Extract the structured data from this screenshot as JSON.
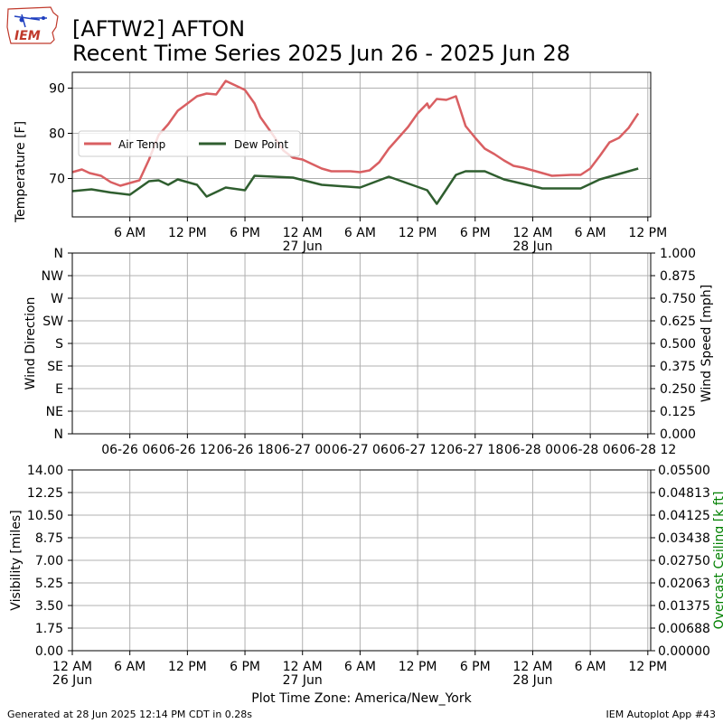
{
  "header": {
    "logo_text": "IEM",
    "title_line1": "[AFTW2] AFTON",
    "title_line2": "Recent Time Series 2025 Jun 26 - 2025 Jun 28"
  },
  "footer": {
    "generated": "Generated at 28 Jun 2025 12:14 PM CDT in 0.28s",
    "app": "IEM Autoplot App #43"
  },
  "colors": {
    "air_temp": "#d95f62",
    "dew_point": "#2f5e2f",
    "grid": "#b0b0b0",
    "ceiling_axis": "#008000"
  },
  "chart_data": [
    {
      "type": "line",
      "ylabel": "Temperature [F]",
      "ylim": [
        61.5,
        93.5
      ],
      "yticks": [
        70,
        80,
        90
      ],
      "xlim_hours": [
        0,
        60.3
      ],
      "xtick_labels": [
        {
          "h": 6,
          "label": "6 AM",
          "sub": ""
        },
        {
          "h": 12,
          "label": "12 PM",
          "sub": ""
        },
        {
          "h": 18,
          "label": "6 PM",
          "sub": ""
        },
        {
          "h": 24,
          "label": "12 AM",
          "sub": "27 Jun"
        },
        {
          "h": 30,
          "label": "6 AM",
          "sub": ""
        },
        {
          "h": 36,
          "label": "12 PM",
          "sub": ""
        },
        {
          "h": 42,
          "label": "6 PM",
          "sub": ""
        },
        {
          "h": 48,
          "label": "12 AM",
          "sub": "28 Jun"
        },
        {
          "h": 54,
          "label": "6 AM",
          "sub": ""
        },
        {
          "h": 60,
          "label": "12 PM",
          "sub": ""
        }
      ],
      "legend": "upper-left",
      "series": [
        {
          "name": "Air Temp",
          "points": [
            [
              0,
              71.4
            ],
            [
              1,
              72.0
            ],
            [
              1.8,
              71.2
            ],
            [
              3,
              70.6
            ],
            [
              4,
              69.2
            ],
            [
              5,
              68.4
            ],
            [
              6,
              69.0
            ],
            [
              7,
              69.6
            ],
            [
              8,
              74.2
            ],
            [
              9,
              79.6
            ],
            [
              10,
              82.0
            ],
            [
              11,
              85.0
            ],
            [
              12,
              86.6
            ],
            [
              13,
              88.2
            ],
            [
              14,
              88.8
            ],
            [
              15,
              88.6
            ],
            [
              16,
              91.6
            ],
            [
              17,
              90.6
            ],
            [
              18,
              89.6
            ],
            [
              19,
              86.6
            ],
            [
              19.6,
              83.6
            ],
            [
              21,
              79.4
            ],
            [
              22,
              76.2
            ],
            [
              23,
              74.6
            ],
            [
              24,
              74.2
            ],
            [
              25,
              73.2
            ],
            [
              26,
              72.2
            ],
            [
              27,
              71.6
            ],
            [
              29,
              71.6
            ],
            [
              30,
              71.4
            ],
            [
              31,
              71.8
            ],
            [
              32,
              73.6
            ],
            [
              33,
              76.6
            ],
            [
              34,
              79.0
            ],
            [
              35,
              81.4
            ],
            [
              36,
              84.4
            ],
            [
              37,
              86.6
            ],
            [
              37.2,
              85.6
            ],
            [
              38,
              87.6
            ],
            [
              39,
              87.4
            ],
            [
              40,
              88.2
            ],
            [
              41,
              81.6
            ],
            [
              42,
              79.0
            ],
            [
              43,
              76.6
            ],
            [
              44,
              75.4
            ],
            [
              45,
              74.0
            ],
            [
              46,
              72.8
            ],
            [
              47,
              72.4
            ],
            [
              48,
              71.8
            ],
            [
              49,
              71.2
            ],
            [
              50,
              70.6
            ],
            [
              52,
              70.8
            ],
            [
              53,
              70.8
            ],
            [
              54,
              72.2
            ],
            [
              55,
              75.0
            ],
            [
              56,
              78.0
            ],
            [
              57,
              79.0
            ],
            [
              58,
              81.2
            ],
            [
              59,
              84.4
            ]
          ]
        },
        {
          "name": "Dew Point",
          "points": [
            [
              0,
              67.2
            ],
            [
              2,
              67.6
            ],
            [
              4,
              66.9
            ],
            [
              6,
              66.4
            ],
            [
              8,
              69.4
            ],
            [
              9,
              69.6
            ],
            [
              10,
              68.6
            ],
            [
              11,
              69.8
            ],
            [
              13,
              68.6
            ],
            [
              14,
              66.0
            ],
            [
              16,
              68.0
            ],
            [
              18,
              67.4
            ],
            [
              19,
              70.6
            ],
            [
              23,
              70.2
            ],
            [
              26,
              68.6
            ],
            [
              30,
              68.0
            ],
            [
              33,
              70.4
            ],
            [
              37,
              67.4
            ],
            [
              38,
              64.4
            ],
            [
              40,
              70.8
            ],
            [
              41,
              71.6
            ],
            [
              43,
              71.6
            ],
            [
              45,
              69.8
            ],
            [
              49,
              67.8
            ],
            [
              53,
              67.8
            ],
            [
              55,
              69.8
            ],
            [
              57,
              71.0
            ],
            [
              59,
              72.2
            ]
          ]
        }
      ]
    },
    {
      "type": "line",
      "ylabel": "Wind Direction",
      "y2label": "Wind Speed [mph]",
      "yticks_left": [
        "N",
        "NE",
        "E",
        "SE",
        "S",
        "SW",
        "W",
        "NW",
        "N"
      ],
      "yticks_right": [
        "0.000",
        "0.125",
        "0.250",
        "0.375",
        "0.500",
        "0.625",
        "0.750",
        "0.875",
        "1.000"
      ],
      "y2lim": [
        0,
        1
      ],
      "xtick_labels": [
        "06-26 06",
        "06-26 12",
        "06-26 18",
        "06-27 00",
        "06-27 06",
        "06-27 12",
        "06-27 18",
        "06-28 00",
        "06-28 06",
        "06-28 12"
      ],
      "series": []
    },
    {
      "type": "line",
      "ylabel": "Visibility [miles]",
      "y2label": "Overcast Ceiling [k ft]",
      "ylim": [
        0,
        14
      ],
      "y2lim": [
        0,
        0.055
      ],
      "yticks_left": [
        "0.00",
        "1.75",
        "3.50",
        "5.25",
        "7.00",
        "8.75",
        "10.50",
        "12.25",
        "14.00"
      ],
      "yticks_right": [
        "0.00000",
        "0.00688",
        "0.01375",
        "0.02063",
        "0.02750",
        "0.03438",
        "0.04125",
        "0.04813",
        "0.05500"
      ],
      "xtick_labels": [
        {
          "h": 0,
          "label": "12 AM",
          "sub": "26 Jun"
        },
        {
          "h": 6,
          "label": "6 AM",
          "sub": ""
        },
        {
          "h": 12,
          "label": "12 PM",
          "sub": ""
        },
        {
          "h": 18,
          "label": "6 PM",
          "sub": ""
        },
        {
          "h": 24,
          "label": "12 AM",
          "sub": "27 Jun"
        },
        {
          "h": 30,
          "label": "6 AM",
          "sub": ""
        },
        {
          "h": 36,
          "label": "12 PM",
          "sub": ""
        },
        {
          "h": 42,
          "label": "6 PM",
          "sub": ""
        },
        {
          "h": 48,
          "label": "12 AM",
          "sub": "28 Jun"
        },
        {
          "h": 54,
          "label": "6 AM",
          "sub": ""
        },
        {
          "h": 60,
          "label": "12 PM",
          "sub": ""
        }
      ],
      "xlabel": "Plot Time Zone: America/New_York",
      "series": []
    }
  ]
}
